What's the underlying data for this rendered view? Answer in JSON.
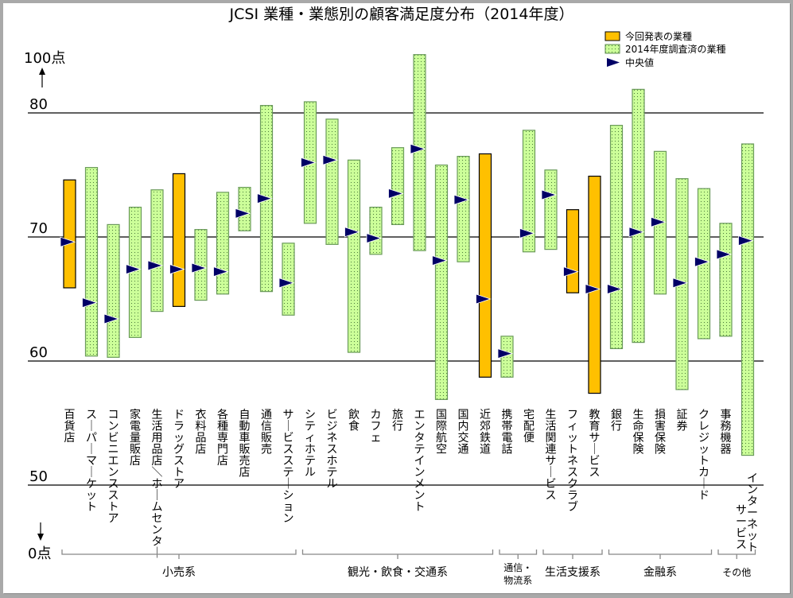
{
  "chart_data": {
    "type": "bar",
    "subtype": "floating-range-with-median",
    "title": "JCSI 業種・業態別の顧客満足度分布（2014年度）",
    "ylabel_top": "100点",
    "ylabel_bottom": "0点",
    "yticks": [
      80,
      70,
      60,
      50
    ],
    "ylim": [
      50,
      85
    ],
    "grid": "horizontal lines at 80, 70, 60, 50",
    "legend_position": "top-right",
    "legend": [
      {
        "key": "current",
        "label": "今回発表の業種",
        "color": "#FFC000"
      },
      {
        "key": "surveyed",
        "label": "2014年度調査済の業種",
        "color": "#CCFF99"
      },
      {
        "key": "median",
        "label": "中央値",
        "color": "#000066"
      }
    ],
    "categories": [
      {
        "label": "百貨店",
        "group": 0,
        "type": "current",
        "min": 65.9,
        "max": 74.6,
        "median": 69.6
      },
      {
        "label": "スーパーマーケット",
        "group": 0,
        "type": "surveyed",
        "min": 60.4,
        "max": 75.6,
        "median": 64.7
      },
      {
        "label": "コンビニエンスストア",
        "group": 0,
        "type": "surveyed",
        "min": 60.3,
        "max": 71.0,
        "median": 63.4
      },
      {
        "label": "家電量販店",
        "group": 0,
        "type": "surveyed",
        "min": 61.9,
        "max": 72.4,
        "median": 67.4
      },
      {
        "label": "生活用品店／ホームセンター",
        "group": 0,
        "type": "surveyed",
        "min": 64.0,
        "max": 73.8,
        "median": 67.7
      },
      {
        "label": "ドラッグストア",
        "group": 0,
        "type": "current",
        "min": 64.4,
        "max": 75.1,
        "median": 67.4
      },
      {
        "label": "衣料品店",
        "group": 0,
        "type": "surveyed",
        "min": 64.9,
        "max": 70.6,
        "median": 67.5
      },
      {
        "label": "各種専門店",
        "group": 0,
        "type": "surveyed",
        "min": 65.4,
        "max": 73.6,
        "median": 67.2
      },
      {
        "label": "自動車販売店",
        "group": 0,
        "type": "surveyed",
        "min": 70.5,
        "max": 74.0,
        "median": 71.9
      },
      {
        "label": "通信販売",
        "group": 0,
        "type": "surveyed",
        "min": 65.6,
        "max": 80.6,
        "median": 73.1
      },
      {
        "label": "サービスステーション",
        "group": 0,
        "type": "surveyed",
        "min": 63.7,
        "max": 69.5,
        "median": 66.3
      },
      {
        "label": "シティホテル",
        "group": 1,
        "type": "surveyed",
        "min": 71.1,
        "max": 80.9,
        "median": 76.0
      },
      {
        "label": "ビジネスホテル",
        "group": 1,
        "type": "surveyed",
        "min": 69.4,
        "max": 79.5,
        "median": 76.2
      },
      {
        "label": "飲食",
        "group": 1,
        "type": "surveyed",
        "min": 60.7,
        "max": 76.2,
        "median": 70.4
      },
      {
        "label": "カフェ",
        "group": 1,
        "type": "surveyed",
        "min": 68.6,
        "max": 72.4,
        "median": 69.9
      },
      {
        "label": "旅行",
        "group": 1,
        "type": "surveyed",
        "min": 71.0,
        "max": 77.2,
        "median": 73.5
      },
      {
        "label": "エンタテインメント",
        "group": 1,
        "type": "surveyed",
        "min": 68.9,
        "max": 84.7,
        "median": 77.1
      },
      {
        "label": "国際航空",
        "group": 1,
        "type": "surveyed",
        "min": 56.9,
        "max": 75.8,
        "median": 68.1
      },
      {
        "label": "国内交通",
        "group": 1,
        "type": "surveyed",
        "min": 68.0,
        "max": 76.5,
        "median": 73.0
      },
      {
        "label": "近郊鉄道",
        "group": 1,
        "type": "current",
        "min": 58.7,
        "max": 76.7,
        "median": 65.0
      },
      {
        "label": "携帯電話",
        "group": 2,
        "type": "surveyed",
        "min": 58.7,
        "max": 62.0,
        "median": 60.6
      },
      {
        "label": "宅配便",
        "group": 2,
        "type": "surveyed",
        "min": 68.8,
        "max": 78.6,
        "median": 70.3
      },
      {
        "label": "生活関連サービス",
        "group": 3,
        "type": "surveyed",
        "min": 69.0,
        "max": 75.4,
        "median": 73.4
      },
      {
        "label": "フィットネスクラブ",
        "group": 3,
        "type": "current",
        "min": 65.5,
        "max": 72.2,
        "median": 67.2
      },
      {
        "label": "教育サービス",
        "group": 3,
        "type": "current",
        "min": 57.4,
        "max": 74.9,
        "median": 65.8
      },
      {
        "label": "銀行",
        "group": 4,
        "type": "surveyed",
        "min": 61.0,
        "max": 79.0,
        "median": 65.8
      },
      {
        "label": "生命保険",
        "group": 4,
        "type": "surveyed",
        "min": 61.5,
        "max": 81.9,
        "median": 70.4
      },
      {
        "label": "損害保険",
        "group": 4,
        "type": "surveyed",
        "min": 65.4,
        "max": 76.9,
        "median": 71.2
      },
      {
        "label": "証券",
        "group": 4,
        "type": "surveyed",
        "min": 57.7,
        "max": 74.7,
        "median": 66.3
      },
      {
        "label": "クレジットカード",
        "group": 4,
        "type": "surveyed",
        "min": 61.8,
        "max": 73.9,
        "median": 68.0
      },
      {
        "label": "事務機器",
        "group": 5,
        "type": "surveyed",
        "min": 62.0,
        "max": 71.1,
        "median": 68.6
      },
      {
        "label": "インターネットサービス",
        "group": 5,
        "type": "surveyed",
        "min": 52.4,
        "max": 77.5,
        "median": 69.7
      }
    ],
    "groups": [
      {
        "label": "小売系",
        "first": 0,
        "last": 10
      },
      {
        "label": "観光・飲食・交通系",
        "first": 11,
        "last": 19
      },
      {
        "label": "通信・物流系",
        "first": 20,
        "last": 21
      },
      {
        "label": "生活支援系",
        "first": 22,
        "last": 24
      },
      {
        "label": "金融系",
        "first": 25,
        "last": 29
      },
      {
        "label": "その他",
        "first": 30,
        "last": 31
      }
    ]
  }
}
